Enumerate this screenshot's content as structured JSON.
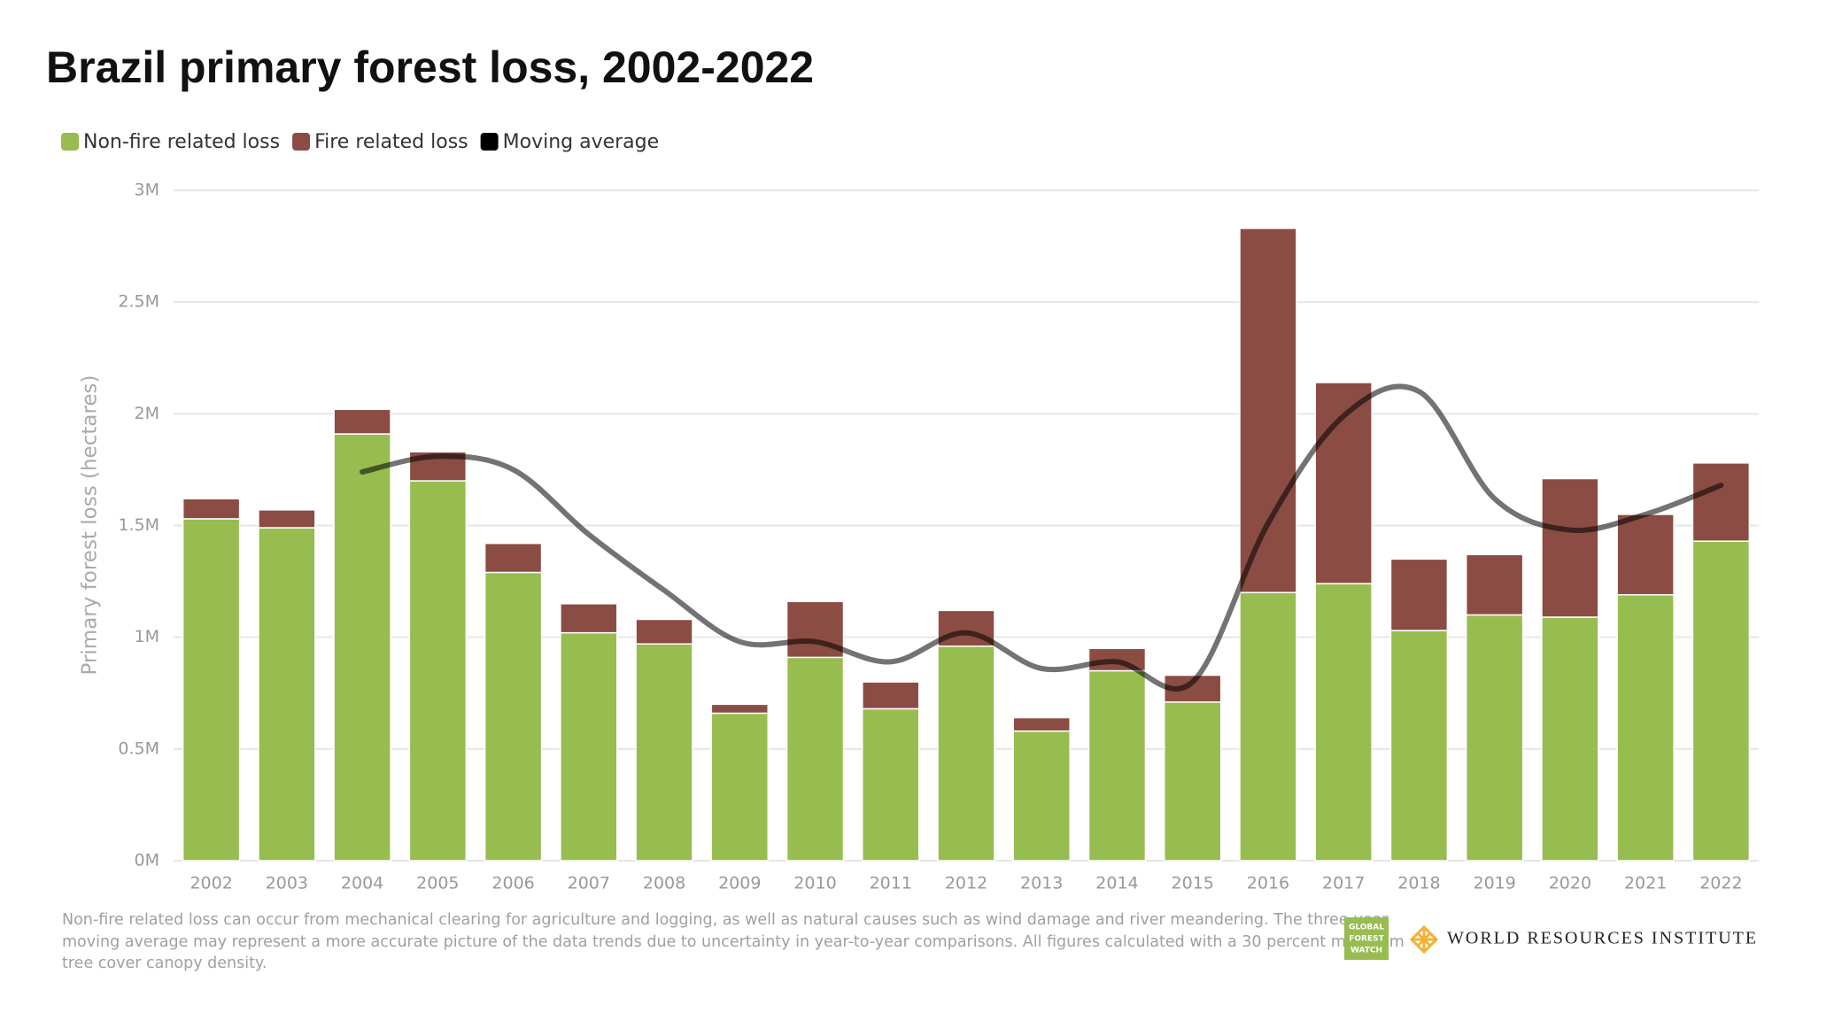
{
  "chart_data": {
    "type": "bar",
    "title": "Brazil primary forest loss, 2002-2022",
    "y_label": "Primary forest loss (hectares)",
    "categories": [
      "2002",
      "2003",
      "2004",
      "2005",
      "2006",
      "2007",
      "2008",
      "2009",
      "2010",
      "2011",
      "2012",
      "2013",
      "2014",
      "2015",
      "2016",
      "2017",
      "2018",
      "2019",
      "2020",
      "2021",
      "2022"
    ],
    "series": [
      {
        "name": "Non-fire related loss",
        "color": "#97bc4f",
        "type": "bar",
        "values": [
          1530000,
          1490000,
          1910000,
          1700000,
          1290000,
          1020000,
          970000,
          660000,
          910000,
          680000,
          960000,
          580000,
          850000,
          710000,
          1200000,
          1240000,
          1030000,
          1100000,
          1090000,
          1190000,
          1430000
        ]
      },
      {
        "name": "Fire related loss",
        "color": "#8b4c43",
        "type": "bar",
        "values": [
          90000,
          80000,
          110000,
          130000,
          130000,
          130000,
          110000,
          40000,
          250000,
          120000,
          160000,
          60000,
          100000,
          120000,
          1630000,
          900000,
          320000,
          270000,
          620000,
          360000,
          350000
        ]
      },
      {
        "name": "Moving average",
        "color": "#000000",
        "type": "line",
        "values": [
          null,
          null,
          1740000,
          1810000,
          1750000,
          1460000,
          1210000,
          980000,
          980000,
          890000,
          1020000,
          860000,
          890000,
          800000,
          1510000,
          1990000,
          2100000,
          1620000,
          1480000,
          1550000,
          1680000
        ]
      }
    ],
    "ylim": [
      0,
      3000000
    ],
    "yticks": [
      {
        "value": 0,
        "label": "0M"
      },
      {
        "value": 500000,
        "label": "0.5M"
      },
      {
        "value": 1000000,
        "label": "1M"
      },
      {
        "value": 1500000,
        "label": "1.5M"
      },
      {
        "value": 2000000,
        "label": "2M"
      },
      {
        "value": 2500000,
        "label": "2.5M"
      },
      {
        "value": 3000000,
        "label": "3M"
      }
    ],
    "grid": true,
    "stacked": true,
    "legend": "top-left",
    "footnote": [
      "Non-fire related loss can occur from mechanical clearing for agriculture and logging, as well as natural causes such as wind damage and river meandering. The three-year",
      "moving average may represent a more accurate picture of the data trends due to uncertainty in year-to-year comparisons. All figures calculated with a 30 percent minimum",
      "tree cover canopy density."
    ]
  },
  "logos": {
    "gfw": [
      "GLOBAL",
      "FOREST",
      "WATCH"
    ],
    "wri": "WORLD RESOURCES INSTITUTE"
  }
}
